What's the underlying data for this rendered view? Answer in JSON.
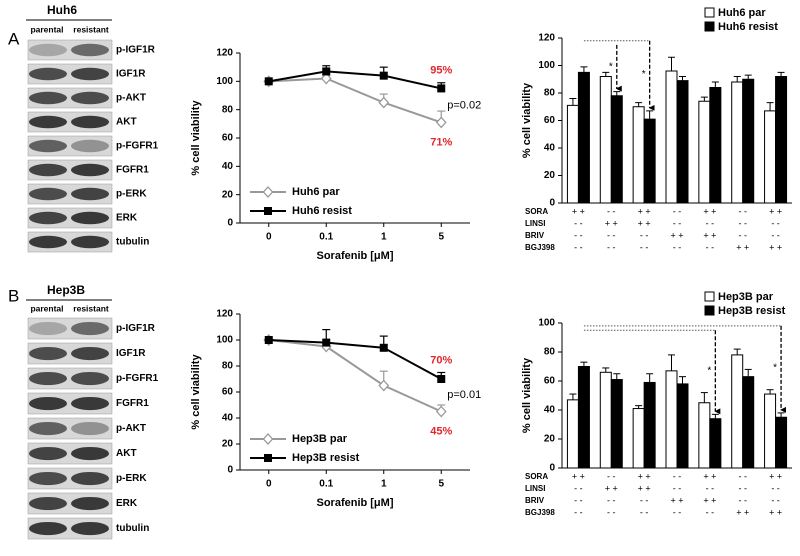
{
  "panels": [
    {
      "label": "A",
      "cell_line": "Huh6",
      "columns": [
        "parental",
        "resistant"
      ],
      "proteins": [
        "p-IGF1R",
        "IGF1R",
        "p-AKT",
        "AKT",
        "p-FGFR1",
        "FGFR1",
        "p-ERK",
        "ERK",
        "tubulin"
      ]
    },
    {
      "label": "B",
      "cell_line": "Hep3B",
      "columns": [
        "parental",
        "resistant"
      ],
      "proteins": [
        "p-IGF1R",
        "IGF1R",
        "p-FGFR1",
        "FGFR1",
        "p-AKT",
        "AKT",
        "p-ERK",
        "ERK",
        "tubulin"
      ]
    }
  ],
  "chart_data": [
    {
      "type": "line",
      "x_label": "Sorafenib [μM]",
      "y_label": "% cell viability",
      "categories": [
        "0",
        "0.1",
        "1",
        "5"
      ],
      "ylim": [
        0,
        120
      ],
      "yticks": [
        0,
        20,
        40,
        60,
        80,
        100,
        120
      ],
      "series": [
        {
          "name": "Huh6 par",
          "color": "#999999",
          "marker": "diamond",
          "values": [
            100,
            102,
            85,
            71
          ],
          "errors": [
            0,
            2,
            6,
            8
          ],
          "value_labels": [
            null,
            null,
            null,
            "71%"
          ]
        },
        {
          "name": "Huh6 resist",
          "color": "#000000",
          "marker": "square",
          "values": [
            100,
            107,
            104,
            95
          ],
          "errors": [
            0,
            4,
            6,
            4
          ],
          "value_labels": [
            null,
            null,
            null,
            "95%"
          ]
        }
      ],
      "value_label_color": "#e3262c",
      "annotation": "p=0.02"
    },
    {
      "type": "bar",
      "y_label": "% cell viability",
      "ylim": [
        0,
        120
      ],
      "yticks": [
        0,
        20,
        40,
        60,
        80,
        100,
        120
      ],
      "treatments": [
        {
          "name": "SORA",
          "marks": [
            "+ +",
            "- -",
            "+ +",
            "- -",
            "+ +",
            "- -",
            "+ +"
          ]
        },
        {
          "name": "LINSI",
          "marks": [
            "- -",
            "+ +",
            "+ +",
            "- -",
            "- -",
            "- -",
            "- -"
          ]
        },
        {
          "name": "BRIV",
          "marks": [
            "- -",
            "- -",
            "- -",
            "+ +",
            "+ +",
            "- -",
            "- -"
          ]
        },
        {
          "name": "BGJ398",
          "marks": [
            "- -",
            "- -",
            "- -",
            "- -",
            "- -",
            "+ +",
            "+ +"
          ]
        }
      ],
      "series": [
        {
          "name": "Huh6 par",
          "color": "#ffffff",
          "values": [
            71,
            92,
            70,
            96,
            74,
            88,
            67
          ],
          "errors": [
            5,
            3,
            3,
            10,
            3,
            4,
            6
          ]
        },
        {
          "name": "Huh6 resist",
          "color": "#000000",
          "values": [
            95,
            78,
            61,
            89,
            84,
            90,
            92
          ],
          "errors": [
            4,
            3,
            6,
            3,
            4,
            3,
            3
          ]
        }
      ],
      "significance_marker": "*",
      "legend": "top-right"
    },
    {
      "type": "line",
      "x_label": "Sorafenib [μM]",
      "y_label": "% cell viability",
      "categories": [
        "0",
        "0.1",
        "1",
        "5"
      ],
      "ylim": [
        0,
        120
      ],
      "yticks": [
        0,
        20,
        40,
        60,
        80,
        100,
        120
      ],
      "series": [
        {
          "name": "Hep3B par",
          "color": "#999999",
          "marker": "diamond",
          "values": [
            100,
            95,
            65,
            45
          ],
          "errors": [
            0,
            3,
            11,
            5
          ],
          "value_labels": [
            null,
            null,
            null,
            "45%"
          ]
        },
        {
          "name": "Hep3B resist",
          "color": "#000000",
          "marker": "square",
          "values": [
            100,
            98,
            94,
            70
          ],
          "errors": [
            0,
            10,
            9,
            5
          ],
          "value_labels": [
            null,
            null,
            null,
            "70%"
          ]
        }
      ],
      "value_label_color": "#e3262c",
      "annotation": "p=0.01"
    },
    {
      "type": "bar",
      "y_label": "% cell viability",
      "ylim": [
        0,
        100
      ],
      "yticks": [
        0,
        20,
        40,
        60,
        80,
        100
      ],
      "treatments": [
        {
          "name": "SORA",
          "marks": [
            "+ +",
            "- -",
            "+ +",
            "- -",
            "+ +",
            "- -",
            "+ +"
          ]
        },
        {
          "name": "LINSI",
          "marks": [
            "- -",
            "+ +",
            "+ +",
            "- -",
            "- -",
            "- -",
            "- -"
          ]
        },
        {
          "name": "BRIV",
          "marks": [
            "- -",
            "- -",
            "- -",
            "+ +",
            "+ +",
            "- -",
            "- -"
          ]
        },
        {
          "name": "BGJ398",
          "marks": [
            "- -",
            "- -",
            "- -",
            "- -",
            "- -",
            "+ +",
            "+ +"
          ]
        }
      ],
      "series": [
        {
          "name": "Hep3B par",
          "color": "#ffffff",
          "values": [
            47,
            66,
            41,
            67,
            45,
            78,
            51
          ],
          "errors": [
            4,
            3,
            2,
            11,
            7,
            4,
            3
          ]
        },
        {
          "name": "Hep3B resist",
          "color": "#000000",
          "values": [
            70,
            61,
            59,
            58,
            34,
            63,
            35
          ],
          "errors": [
            3,
            4,
            6,
            5,
            3,
            5,
            3
          ]
        }
      ],
      "significance_marker": "*",
      "legend": "top-right"
    }
  ]
}
